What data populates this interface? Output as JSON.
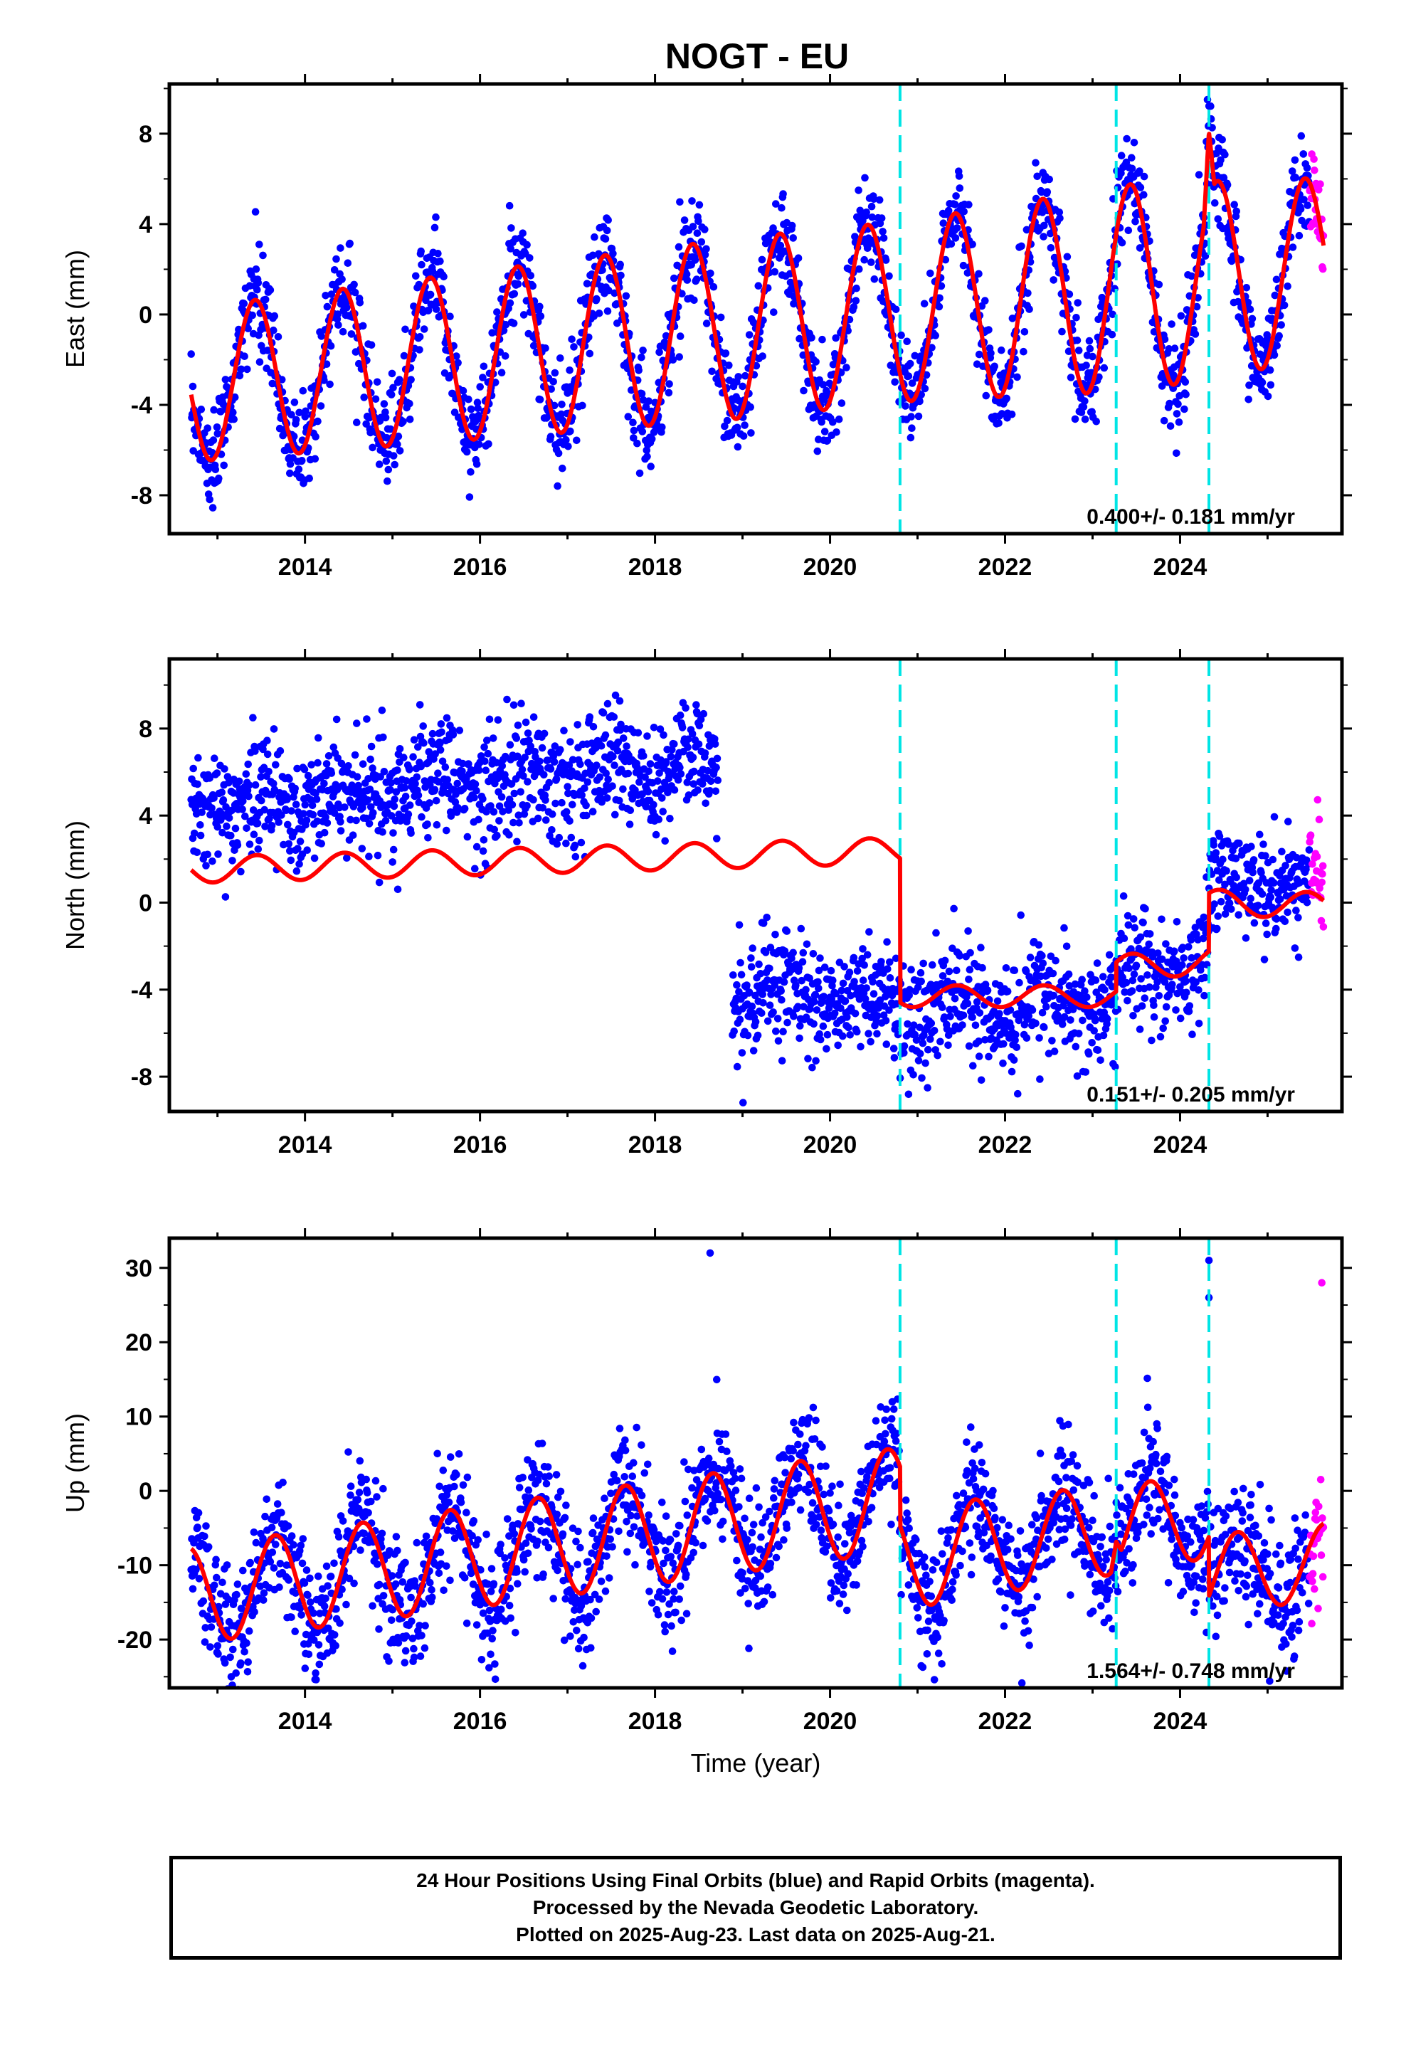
{
  "title": "NOGT - EU",
  "xlabel": "Time (year)",
  "colors": {
    "final_orbits": "#0000ff",
    "rapid_orbits": "#ff00ff",
    "model": "#ff0000",
    "breaks": "#00e5e5",
    "frame": "#000000"
  },
  "footer": {
    "line1": "24 Hour Positions Using Final Orbits (blue) and Rapid Orbits (magenta).",
    "line2": "Processed by the Nevada Geodetic Laboratory.",
    "line3": "Plotted on 2025-Aug-23. Last data on 2025-Aug-21."
  },
  "chart_data": [
    {
      "type": "scatter",
      "panel": "East",
      "ylabel": "East (mm)",
      "xlim": [
        2012.45,
        2025.85
      ],
      "ylim": [
        -9.7,
        10.2
      ],
      "x_ticks": [
        2014,
        2016,
        2018,
        2020,
        2022,
        2024
      ],
      "y_ticks": [
        -8,
        -4,
        0,
        4,
        8
      ],
      "rate_label": "0.400+/- 0.181 mm/yr",
      "data_start": 2012.7,
      "final_end": 2025.48,
      "rapid_end": 2025.64,
      "equipment_breaks": [
        2020.8,
        2023.27,
        2024.33
      ],
      "model": {
        "offset": -0.6,
        "trend": 0.4,
        "amplitudes": [
          [
            2012.7,
            3.4
          ],
          [
            2019.0,
            4.0
          ],
          [
            2021.0,
            4.0
          ],
          [
            2023.5,
            4.6
          ],
          [
            2025.6,
            4.0
          ]
        ],
        "phase_peak": 0.43,
        "steps": [],
        "spikes": [
          [
            2024.33,
            3.0
          ]
        ]
      },
      "scatter_sd": 1.1,
      "max_annual_extreme": 7.8,
      "min_annual_extreme": -8.0
    },
    {
      "type": "scatter",
      "panel": "North",
      "ylabel": "North (mm)",
      "xlim": [
        2012.45,
        2025.85
      ],
      "ylim": [
        -9.6,
        11.2
      ],
      "x_ticks": [
        2014,
        2016,
        2018,
        2020,
        2022,
        2024
      ],
      "y_ticks": [
        -8,
        -4,
        0,
        4,
        8
      ],
      "rate_label": "0.151+/- 0.205 mm/yr",
      "data_start": 2012.7,
      "final_end": 2025.48,
      "rapid_end": 2025.64,
      "equipment_breaks": [
        2020.8,
        2023.27,
        2024.33
      ],
      "data_gap": [
        2018.72,
        2018.88
      ],
      "segments": [
        {
          "start": 2012.7,
          "end": 2018.72,
          "level": 4.4,
          "trend": 0.35,
          "sd": 1.4
        },
        {
          "start": 2018.88,
          "end": 2020.8,
          "level": -4.0,
          "trend": -0.4,
          "sd": 1.3
        },
        {
          "start": 2020.8,
          "end": 2023.27,
          "level": -4.9,
          "trend": 0.1,
          "sd": 1.3
        },
        {
          "start": 2023.27,
          "end": 2024.33,
          "level": -3.2,
          "trend": 0.4,
          "sd": 1.3
        },
        {
          "start": 2024.33,
          "end": 2025.64,
          "level": 0.7,
          "trend": 0.1,
          "sd": 1.2
        }
      ],
      "model": {
        "segments": [
          {
            "start": 2012.7,
            "end": 2020.8,
            "offset": 1.5,
            "trend": 0.11,
            "amplitude": 0.6
          },
          {
            "start": 2020.8,
            "end": 2023.27,
            "offset": -4.3,
            "trend": 0.0,
            "amplitude": 0.5
          },
          {
            "start": 2023.27,
            "end": 2024.33,
            "offset": -3.0,
            "trend": 0.3,
            "amplitude": 0.6
          },
          {
            "start": 2024.33,
            "end": 2025.64,
            "offset": 0.0,
            "trend": -0.1,
            "amplitude": 0.6
          }
        ],
        "phase_peak": 0.45
      }
    },
    {
      "type": "scatter",
      "panel": "Up",
      "ylabel": "Up (mm)",
      "xlim": [
        2012.45,
        2025.85
      ],
      "ylim": [
        -26.5,
        34.0
      ],
      "x_ticks": [
        2014,
        2016,
        2018,
        2020,
        2022,
        2024
      ],
      "y_ticks": [
        -20,
        -10,
        0,
        10,
        20,
        30
      ],
      "rate_label": "1.564+/- 0.748 mm/yr",
      "data_start": 2012.7,
      "final_end": 2025.48,
      "rapid_end": 2025.64,
      "equipment_breaks": [
        2020.8,
        2023.27,
        2024.33
      ],
      "model": {
        "offset": -4.0,
        "trend": 1.6,
        "amplitudes": [
          [
            2012.7,
            6.5
          ],
          [
            2016.0,
            6.8
          ],
          [
            2020.5,
            7.0
          ],
          [
            2023.3,
            6.0
          ],
          [
            2025.6,
            5.0
          ]
        ],
        "phase_peak": 0.66,
        "steps": [
          [
            2020.8,
            -8.0
          ],
          [
            2024.33,
            -8.0
          ]
        ],
        "spikes": [
          [
            2023.27,
            3.0
          ]
        ]
      },
      "scatter_sd": 4.2,
      "outliers": [
        [
          2018.63,
          32.0
        ],
        [
          2024.33,
          31.0
        ],
        [
          2024.33,
          26.0
        ],
        [
          2025.62,
          28.0
        ]
      ]
    }
  ]
}
